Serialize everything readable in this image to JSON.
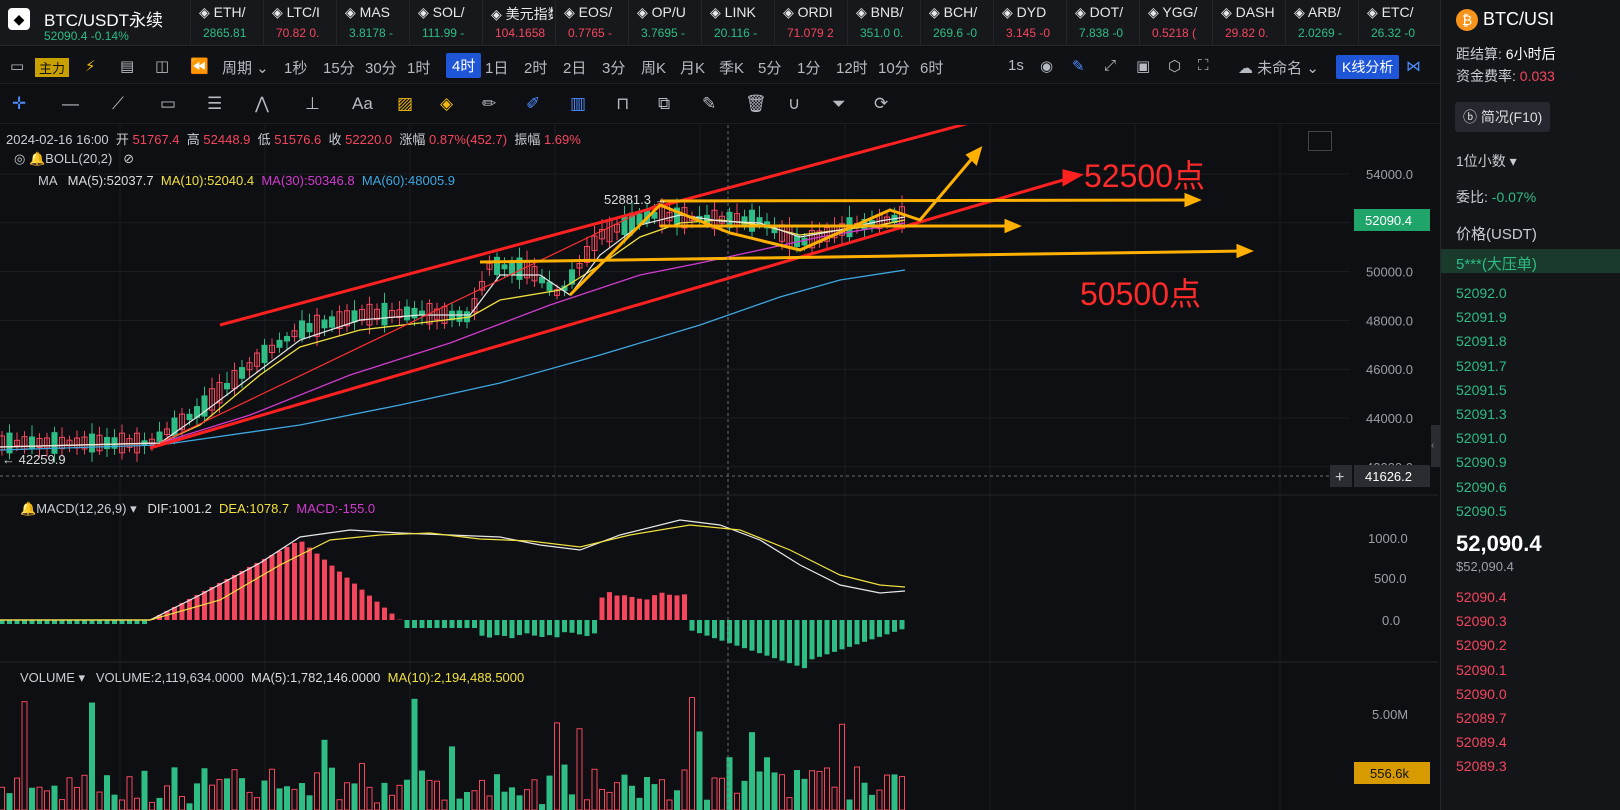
{
  "symbol": {
    "name": "BTC/USDT永续",
    "price": "52090.4",
    "change": "-0.14%"
  },
  "tickers": [
    {
      "name": "ETH/",
      "val": "2865.81",
      "dir": "dn"
    },
    {
      "name": "LTC/I",
      "val": "70.82  0.",
      "dir": "up"
    },
    {
      "name": "MAS",
      "val": "3.8178 -",
      "dir": "dn"
    },
    {
      "name": "SOL/",
      "val": "111.99 -",
      "dir": "dn"
    },
    {
      "name": "美元指数",
      "val": "104.1658",
      "dir": "up"
    },
    {
      "name": "EOS/",
      "val": "0.7765 -",
      "dir": "up"
    },
    {
      "name": "OP/U",
      "val": "3.7695 -",
      "dir": "dn"
    },
    {
      "name": "LINK",
      "val": "20.116 -",
      "dir": "dn"
    },
    {
      "name": "ORDI",
      "val": "71.079 2",
      "dir": "up"
    },
    {
      "name": "BNB/",
      "val": "351.0 0.",
      "dir": "dn"
    },
    {
      "name": "BCH/",
      "val": "269.6 -0",
      "dir": "dn"
    },
    {
      "name": "DYD",
      "val": "3.145 -0",
      "dir": "up"
    },
    {
      "name": "DOT/",
      "val": "7.838 -0",
      "dir": "dn"
    },
    {
      "name": "YGG/",
      "val": "0.5218 (",
      "dir": "up"
    },
    {
      "name": "DASH",
      "val": "29.82 0.",
      "dir": "up"
    },
    {
      "name": "ARB/",
      "val": "2.0269 -",
      "dir": "dn"
    },
    {
      "name": "ETC/",
      "val": "26.32 -0",
      "dir": "dn"
    }
  ],
  "toolbar": {
    "main": "主力",
    "period": "周期",
    "intervals": [
      "1秒",
      "15分",
      "30分",
      "1时",
      "4时",
      "1日",
      "2时",
      "2日",
      "3分",
      "周K",
      "月K",
      "季K",
      "5分",
      "1分",
      "12时",
      "10分",
      "6时"
    ],
    "active": "4时",
    "speed": "1s",
    "layout": "未命名",
    "kline_btn": "K线分析"
  },
  "info": {
    "date": "2024-02-16 16:00",
    "open_l": "开",
    "open": "51767.4",
    "high_l": "高",
    "high": "52448.9",
    "low_l": "低",
    "low": "51576.6",
    "close_l": "收",
    "close": "52220.0",
    "chg_l": "涨幅",
    "chg": "0.87%(452.7)",
    "amp_l": "振幅",
    "amp": "1.69%"
  },
  "boll": "BOLL(20,2)",
  "ma": {
    "label": "MA",
    "ma5": "MA(5):52037.7",
    "ma10": "MA(10):52040.4",
    "ma30": "MA(30):50346.8",
    "ma60": "MA(60):48005.9"
  },
  "macd": {
    "label": "MACD(12,26,9)",
    "dif": "DIF:1001.2",
    "dea": "DEA:1078.7",
    "macd": "MACD:-155.0"
  },
  "volume": {
    "label": "VOLUME",
    "vol": "VOLUME:2,119,634.0000",
    "ma5": "MA(5):1,782,146.0000",
    "ma10": "MA(10):2,194,488.5000"
  },
  "annotations": {
    "high_mark": "52881.3 →",
    "low_mark": "← 42259.9",
    "target_up": "52500点",
    "target_down": "50500点"
  },
  "price_axis": {
    "ticks": [
      "54000.0",
      "52000.0",
      "50000.0",
      "48000.0",
      "46000.0",
      "44000.0",
      "42000.0"
    ],
    "current": "52090.4",
    "cross": "41626.2"
  },
  "macd_axis": [
    "1000.0",
    "500.0",
    "0.0"
  ],
  "vol_axis": {
    "tick": "5.00M",
    "current": "556.6k"
  },
  "panel": {
    "title": "BTC/USI",
    "settle_l": "距结算:",
    "settle": "6小时后",
    "fund_l": "资金费率:",
    "fund": "0.033",
    "brief": "简况(F10)",
    "decimals": "1位小数",
    "ratio_l": "委比:",
    "ratio": "-0.07%",
    "price_h": "价格(USDT)",
    "big": "5***(大压单)",
    "asks": [
      "52092.0",
      "52091.9",
      "52091.8",
      "52091.7",
      "52091.5",
      "52091.3",
      "52091.0",
      "52090.9",
      "52090.6",
      "52090.5"
    ],
    "last": "52,090.4",
    "last_usd": "$52,090.4",
    "bids": [
      "52090.4",
      "52090.3",
      "52090.2",
      "52090.1",
      "52090.0",
      "52089.7",
      "52089.4",
      "52089.3"
    ]
  }
}
